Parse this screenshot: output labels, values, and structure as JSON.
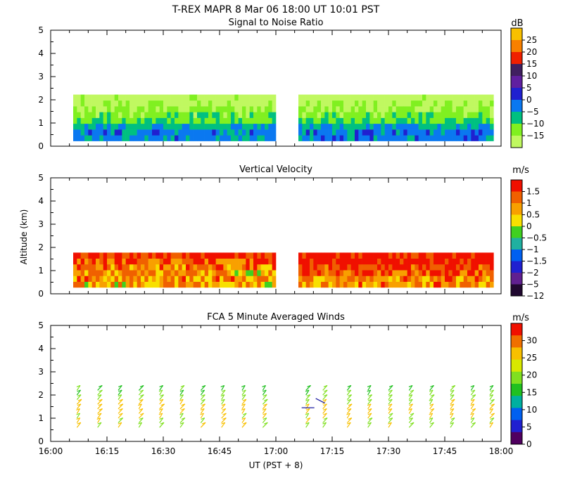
{
  "header": {
    "title": "T-REX   MAPR   8 Mar 06   18:00 UT   10:01   PST"
  },
  "x_axis": {
    "label": "UT  (PST + 8)",
    "range": [
      0,
      120
    ],
    "ticks": [
      {
        "value": 0,
        "label": "16:00"
      },
      {
        "value": 15,
        "label": "16:15"
      },
      {
        "value": 30,
        "label": "16:30"
      },
      {
        "value": 45,
        "label": "16:45"
      },
      {
        "value": 60,
        "label": "17:00"
      },
      {
        "value": 75,
        "label": "17:15"
      },
      {
        "value": 90,
        "label": "17:30"
      },
      {
        "value": 105,
        "label": "17:45"
      },
      {
        "value": 120,
        "label": "18:00"
      }
    ]
  },
  "y_axis": {
    "label": "Altitude (km)",
    "range": [
      0,
      5
    ],
    "ticks": [
      0,
      1,
      2,
      3,
      4,
      5
    ]
  },
  "colors": {
    "no_data": "#ffffff",
    "frame": "#000000",
    "wind_barb_5min": "#1a1aa0"
  },
  "chart_data": [
    {
      "type": "heatmap",
      "title": "Signal to Noise Ratio",
      "xlabel": "UT  (PST + 8)",
      "ylabel": "",
      "ylim": [
        0,
        5
      ],
      "xlim_minutes_after_1600": [
        0,
        120
      ],
      "data_segments_minutes": [
        [
          6,
          60
        ],
        [
          66,
          118
        ]
      ],
      "colorbar": {
        "unit": "dB",
        "labels": [
          "25",
          "20",
          "15",
          "10",
          "5",
          "0",
          "−5",
          "−10",
          "−15"
        ],
        "colors": [
          "#f8c000",
          "#f88000",
          "#f02000",
          "#402060",
          "#6020a0",
          "#2020d0",
          "#0a78f0",
          "#00c080",
          "#80f020",
          "#c0f860"
        ]
      },
      "profile_altitudes_km": [
        0.35,
        0.6,
        0.85,
        1.1,
        1.35,
        1.6,
        1.85,
        2.1
      ],
      "profile_values_dB": [
        0,
        0,
        -3,
        -8,
        -10,
        -12,
        -14,
        -16
      ]
    },
    {
      "type": "heatmap",
      "title": "Vertical Velocity",
      "xlabel": "UT  (PST + 8)",
      "ylabel": "Altitude (km)",
      "ylim": [
        0,
        5
      ],
      "xlim_minutes_after_1600": [
        0,
        120
      ],
      "data_segments_minutes": [
        [
          6,
          60
        ],
        [
          66,
          118
        ]
      ],
      "colorbar": {
        "unit": "m/s",
        "labels": [
          "1.5",
          "1",
          "0.5",
          "0",
          "−0.5",
          "−1",
          "−1.5",
          "−2",
          "−5",
          "−12"
        ],
        "colors": [
          "#f01000",
          "#f06000",
          "#f8a000",
          "#f8e000",
          "#40d020",
          "#20b0a0",
          "#0060f0",
          "#2020d0",
          "#602090",
          "#200830"
        ]
      },
      "profile_altitudes_km": [
        0.4,
        0.65,
        0.9,
        1.15,
        1.4,
        1.65
      ],
      "profile_values_ms_first_segment": [
        0.2,
        0.4,
        0.2,
        0.5,
        0.8,
        1.4
      ],
      "profile_values_ms_second_segment": [
        0.3,
        0.5,
        0.9,
        1.2,
        1.6,
        1.5
      ]
    },
    {
      "type": "scatter",
      "title": "FCA 5 Minute Averaged Winds",
      "xlabel": "UT  (PST + 8)",
      "ylabel": "",
      "ylim": [
        0,
        5
      ],
      "xlim_minutes_after_1600": [
        0,
        120
      ],
      "colorbar": {
        "unit": "m/s",
        "labels": [
          "30",
          "25",
          "20",
          "15",
          "10",
          "5",
          "0"
        ],
        "colors": [
          "#f01000",
          "#f07000",
          "#f8c000",
          "#d8e800",
          "#80e020",
          "#20c020",
          "#00b0a0",
          "#0060f0",
          "#2020d0",
          "#500060"
        ]
      },
      "profile_times_minutes": [
        7,
        12.5,
        18,
        23.5,
        29,
        34.5,
        40,
        45.5,
        51,
        56.5,
        68,
        72.5,
        79,
        84.5,
        90,
        95.5,
        101,
        106.5,
        112,
        117
      ],
      "profile_altitudes_km": [
        0.6,
        0.8,
        1.0,
        1.2,
        1.4,
        1.6,
        1.8,
        2.0,
        2.2
      ],
      "profile_speeds_ms": [
        19,
        20,
        21,
        22,
        23,
        20,
        18,
        16,
        14
      ]
    }
  ]
}
